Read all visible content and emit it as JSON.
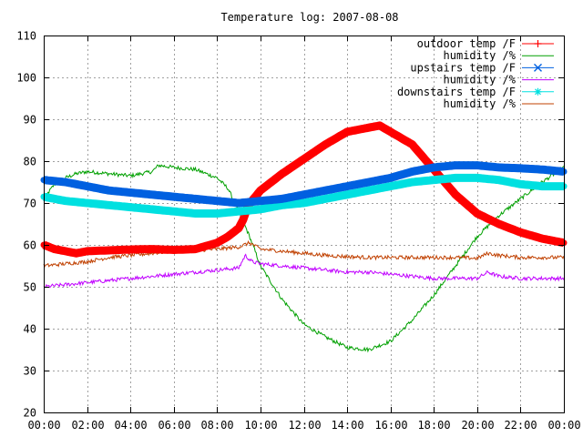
{
  "chart_data": {
    "type": "line",
    "title": "Temperature log: 2007-08-08",
    "xlabel": "",
    "ylabel": "",
    "x_ticks": [
      "00:00",
      "02:00",
      "04:00",
      "06:00",
      "08:00",
      "10:00",
      "12:00",
      "14:00",
      "16:00",
      "18:00",
      "20:00",
      "22:00",
      "00:00"
    ],
    "xlim_hours": [
      0,
      24
    ],
    "ylim": [
      20,
      110
    ],
    "y_ticks": [
      20,
      30,
      40,
      50,
      60,
      70,
      80,
      90,
      100,
      110
    ],
    "grid": true,
    "legend_position": "top-right",
    "series": [
      {
        "name": "outdoor temp /F",
        "color": "#ff0000",
        "marker": "plus",
        "style": "thick",
        "x": [
          0,
          0.5,
          1,
          1.5,
          2,
          3,
          4,
          5,
          6,
          7,
          8,
          8.5,
          9,
          9.2,
          9.4,
          9.6,
          10,
          11,
          12,
          13,
          14,
          15,
          15.5,
          16,
          17,
          18,
          19,
          20,
          21,
          22,
          23,
          24
        ],
        "y": [
          60,
          59,
          58.5,
          58,
          58.5,
          58.7,
          58.9,
          59,
          58.8,
          59,
          60.5,
          62,
          64,
          66,
          69,
          70.5,
          73,
          77,
          80.5,
          84,
          87,
          88,
          88.5,
          87,
          84,
          78,
          72,
          67.5,
          65,
          63,
          61.5,
          60.5
        ]
      },
      {
        "name": "humidity /%",
        "color": "#00a000",
        "marker": "none",
        "style": "thin",
        "noisy": true,
        "x": [
          0,
          0.5,
          1,
          1.5,
          2,
          3,
          4,
          5,
          5.3,
          6,
          7,
          8,
          8.5,
          9,
          9.5,
          10,
          11,
          12,
          13,
          14,
          15,
          16,
          17,
          18,
          19,
          20,
          21,
          22,
          23,
          24
        ],
        "y": [
          71,
          74.5,
          76,
          77,
          77.5,
          77,
          76.5,
          77.5,
          79,
          78.5,
          78,
          76,
          73.5,
          68,
          62,
          55,
          47,
          41,
          38,
          35.5,
          35,
          37,
          42,
          48,
          55,
          62,
          67,
          71,
          75,
          78.5
        ]
      },
      {
        "name": "upstairs temp /F",
        "color": "#0060e0",
        "marker": "cross",
        "style": "thick",
        "x": [
          0,
          1,
          2,
          3,
          4,
          5,
          6,
          7,
          8,
          9,
          10,
          11,
          12,
          13,
          14,
          15,
          16,
          17,
          18,
          19,
          20,
          21,
          22,
          23,
          24
        ],
        "y": [
          75.5,
          75,
          74,
          73,
          72.5,
          72,
          71.5,
          71,
          70.5,
          70,
          70.5,
          71,
          72,
          73,
          74,
          75,
          76,
          77.5,
          78.5,
          79,
          79,
          78.5,
          78.3,
          78,
          77.5
        ]
      },
      {
        "name": "humidity /%",
        "color": "#c000ff",
        "marker": "none",
        "style": "thin",
        "noisy": true,
        "x": [
          0,
          1,
          2,
          3,
          4,
          5,
          6,
          7,
          8,
          9,
          9.3,
          9.6,
          10,
          11,
          12,
          13,
          14,
          15,
          16,
          17,
          18,
          19,
          20,
          20.5,
          21,
          22,
          23,
          24
        ],
        "y": [
          50,
          50.5,
          51,
          51.5,
          52,
          52.5,
          53,
          53.5,
          54,
          54.5,
          57.5,
          56,
          55.5,
          55,
          54.5,
          54,
          53.5,
          53.5,
          53,
          52.5,
          52,
          52,
          52,
          53.5,
          52.5,
          52,
          52,
          52
        ]
      },
      {
        "name": "downstairs temp /F",
        "color": "#00e0e0",
        "marker": "star",
        "style": "thick",
        "x": [
          0,
          1,
          2,
          3,
          4,
          5,
          6,
          7,
          8,
          9,
          10,
          11,
          12,
          13,
          14,
          15,
          16,
          17,
          18,
          19,
          20,
          21,
          22,
          23,
          24
        ],
        "y": [
          71.5,
          70.5,
          70,
          69.5,
          69,
          68.5,
          68,
          67.5,
          67.5,
          68,
          68.5,
          69.5,
          70,
          71,
          72,
          73,
          74,
          75,
          75.5,
          76,
          76,
          75.5,
          74.5,
          74,
          74
        ]
      },
      {
        "name": "humidity /%",
        "color": "#c04000",
        "marker": "none",
        "style": "thin",
        "noisy": true,
        "x": [
          0,
          1,
          2,
          3,
          4,
          5,
          6,
          7,
          8,
          9,
          9.5,
          10,
          11,
          12,
          13,
          14,
          15,
          16,
          17,
          18,
          19,
          20,
          20.5,
          21,
          22,
          23,
          24
        ],
        "y": [
          55,
          55.5,
          56,
          57,
          57.5,
          58,
          58.5,
          58.7,
          59,
          59.5,
          60.5,
          59,
          58.5,
          58,
          57.5,
          57.2,
          57,
          57,
          57,
          57,
          57,
          56.8,
          58,
          57.5,
          57,
          57,
          57
        ]
      }
    ]
  }
}
